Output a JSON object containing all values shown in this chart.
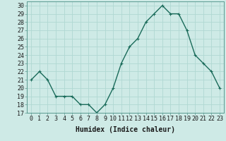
{
  "x": [
    0,
    1,
    2,
    3,
    4,
    5,
    6,
    7,
    8,
    9,
    10,
    11,
    12,
    13,
    14,
    15,
    16,
    17,
    18,
    19,
    20,
    21,
    22,
    23
  ],
  "y": [
    21,
    22,
    21,
    19,
    19,
    19,
    18,
    18,
    17,
    18,
    20,
    23,
    25,
    26,
    28,
    29,
    30,
    29,
    29,
    27,
    24,
    23,
    22,
    20
  ],
  "line_color": "#1a6b5a",
  "marker": "+",
  "marker_size": 3,
  "marker_color": "#1a6b5a",
  "bg_color": "#ceeae6",
  "grid_color": "#b0d8d2",
  "xlabel": "Humidex (Indice chaleur)",
  "ylabel_ticks": [
    17,
    18,
    19,
    20,
    21,
    22,
    23,
    24,
    25,
    26,
    27,
    28,
    29,
    30
  ],
  "xlim": [
    -0.5,
    23.5
  ],
  "ylim": [
    17,
    30.5
  ],
  "xlabel_fontsize": 7,
  "tick_fontsize": 6,
  "line_width": 1.0
}
